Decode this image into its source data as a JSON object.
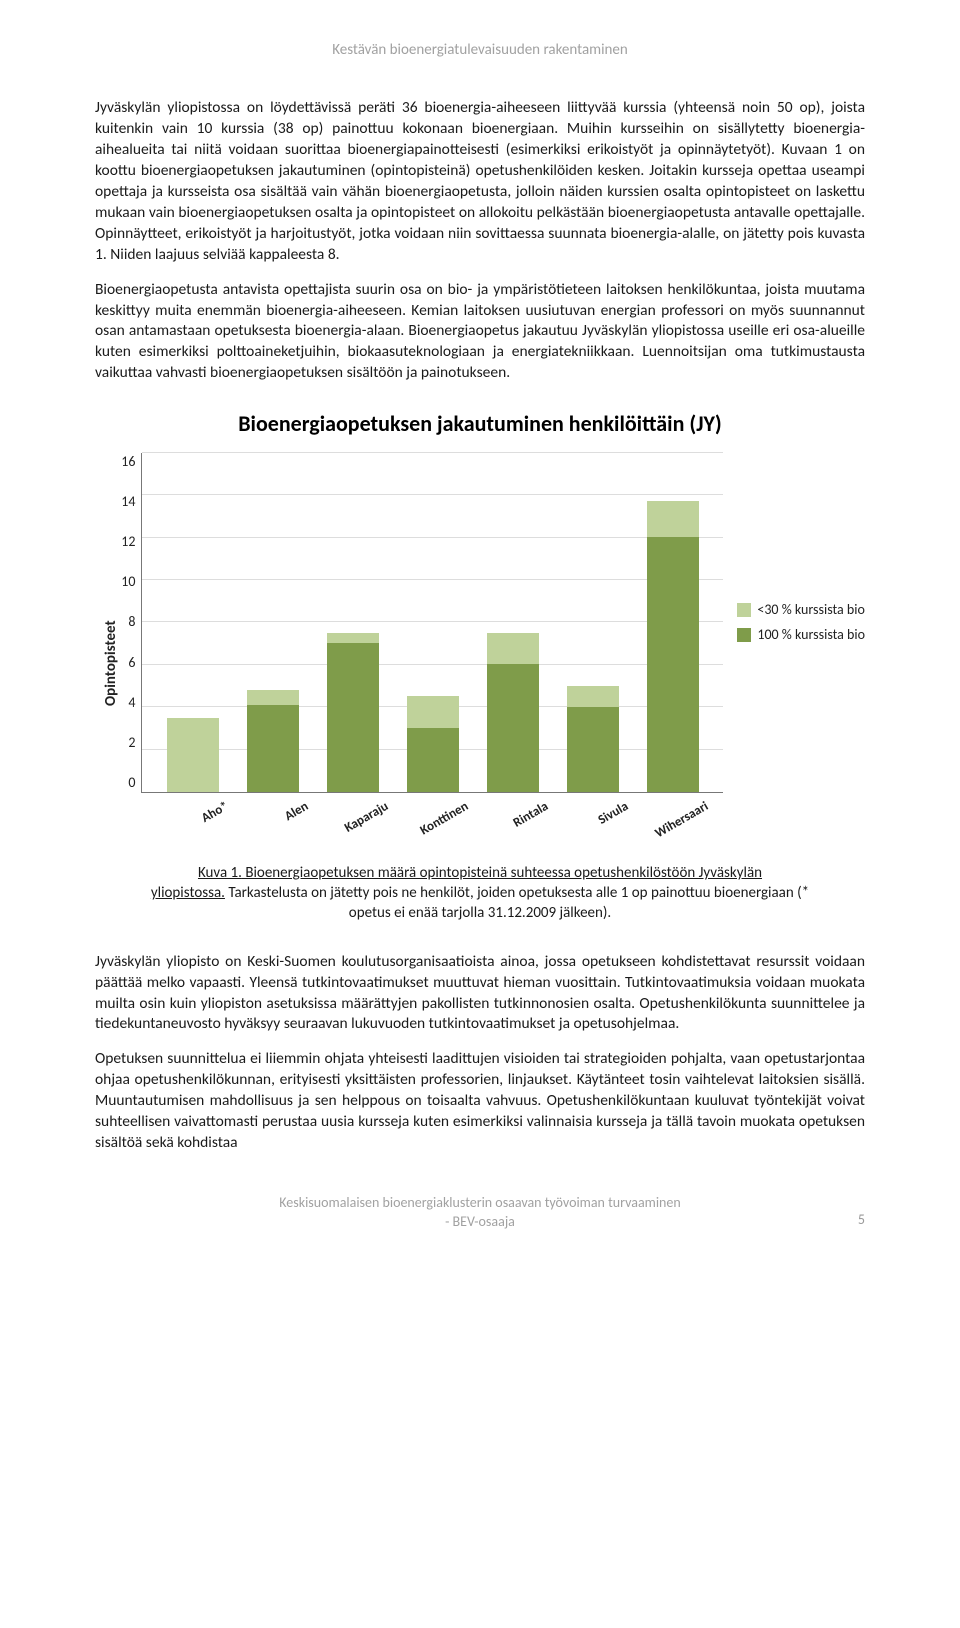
{
  "header": "Kestävän bioenergiatulevaisuuden rakentaminen",
  "paragraphs": {
    "p1": "Jyväskylän yliopistossa on löydettävissä peräti 36 bioenergia-aiheeseen liittyvää kurssia (yhteensä noin 50 op), joista kuitenkin vain 10 kurssia (38 op) painottuu kokonaan bioenergiaan. Muihin kursseihin on sisällytetty bioenergia-aihealueita tai niitä voidaan suorittaa bioenergiapainotteisesti (esimerkiksi erikoistyöt ja opinnäytetyöt). Kuvaan 1 on koottu bioenergiaopetuksen jakautuminen (opintopisteinä) opetushenkilöiden kesken. Joitakin kursseja opettaa useampi opettaja ja kursseista osa sisältää vain vähän bioenergiaopetusta, jolloin näiden kurssien osalta opintopisteet on laskettu mukaan vain bioenergiaopetuksen osalta ja opintopisteet on allokoitu pelkästään bioenergiaopetusta antavalle opettajalle. Opinnäytteet, erikoistyöt ja harjoitustyöt, jotka voidaan niin sovittaessa suunnata bioenergia-alalle, on jätetty pois kuvasta 1. Niiden laajuus selviää kappaleesta 8.",
    "p2": "Bioenergiaopetusta antavista opettajista suurin osa on bio- ja ympäristötieteen laitoksen henkilökuntaa, joista muutama keskittyy muita enemmän bioenergia-aiheeseen. Kemian laitoksen uusiutuvan energian professori on myös suunnannut osan antamastaan opetuksesta bioenergia-alaan. Bioenergiaopetus jakautuu Jyväskylän yliopistossa useille eri osa-alueille kuten esimerkiksi polttoaineketjuihin, biokaasuteknologiaan ja energiatekniikkaan. Luennoitsijan oma tutkimustausta vaikuttaa vahvasti bioenergiaopetuksen sisältöön ja painotukseen.",
    "p3": "Jyväskylän yliopisto on Keski-Suomen koulutusorganisaatioista ainoa, jossa opetukseen kohdistettavat resurssit voidaan päättää melko vapaasti. Yleensä tutkintovaatimukset muuttuvat hieman vuosittain. Tutkintovaatimuksia voidaan muokata muilta osin kuin yliopiston asetuksissa määrättyjen pakollisten tutkinnonosien osalta. Opetushenkilökunta suunnittelee ja tiedekuntaneuvosto hyväksyy seuraavan lukuvuoden tutkintovaatimukset ja opetusohjelmaa.",
    "p4": "Opetuksen suunnittelua ei liiemmin ohjata yhteisesti laadittujen visioiden tai strategioiden pohjalta, vaan opetustarjontaa ohjaa opetushenkilökunnan, erityisesti yksittäisten professorien, linjaukset. Käytänteet tosin vaihtelevat laitoksien sisällä. Muuntautumisen mahdollisuus ja sen helppous on toisaalta vahvuus. Opetushenkilökuntaan kuuluvat työntekijät voivat suhteellisen vaivattomasti perustaa uusia kursseja kuten esimerkiksi valinnaisia kursseja ja tällä tavoin muokata opetuksen sisältöä sekä kohdistaa"
  },
  "chart": {
    "title": "Bioenergiaopetuksen jakautuminen henkilöittäin (JY)",
    "ylabel": "Opintopisteet",
    "ymax": 16,
    "ytick_step": 2,
    "yticks": [
      "16",
      "14",
      "12",
      "10",
      "8",
      "6",
      "4",
      "2",
      "0"
    ],
    "categories": [
      "Aho*",
      "Alen",
      "Kaparaju",
      "Konttinen",
      "Rintala",
      "Sivula",
      "Wihersaari"
    ],
    "series_full": [
      0,
      4.1,
      7,
      3,
      6,
      4,
      12
    ],
    "series_partial": [
      3.5,
      0.7,
      0.5,
      1.5,
      1.5,
      1,
      1.7
    ],
    "color_full": "#7f9c4a",
    "color_partial": "#bfd29a",
    "grid_color": "#dddddd",
    "legend": {
      "partial": "<30 % kurssista bio",
      "full": "100 % kurssista bio"
    }
  },
  "caption": {
    "lead": "Kuva 1.",
    "line1": " Bioenergiaopetuksen määrä opintopisteinä suhteessa opetushenkilöstöön Jyväskylän",
    "line2": "yliopistossa.",
    "rest": " Tarkastelusta on jätetty pois ne henkilöt, joiden opetuksesta alle 1 op painottuu bioenergiaan (* opetus ei enää tarjolla 31.12.2009 jälkeen)."
  },
  "footer": {
    "line1": "Keskisuomalaisen bioenergiaklusterin osaavan työvoiman turvaaminen",
    "line2": "- BEV-osaaja",
    "page": "5"
  }
}
